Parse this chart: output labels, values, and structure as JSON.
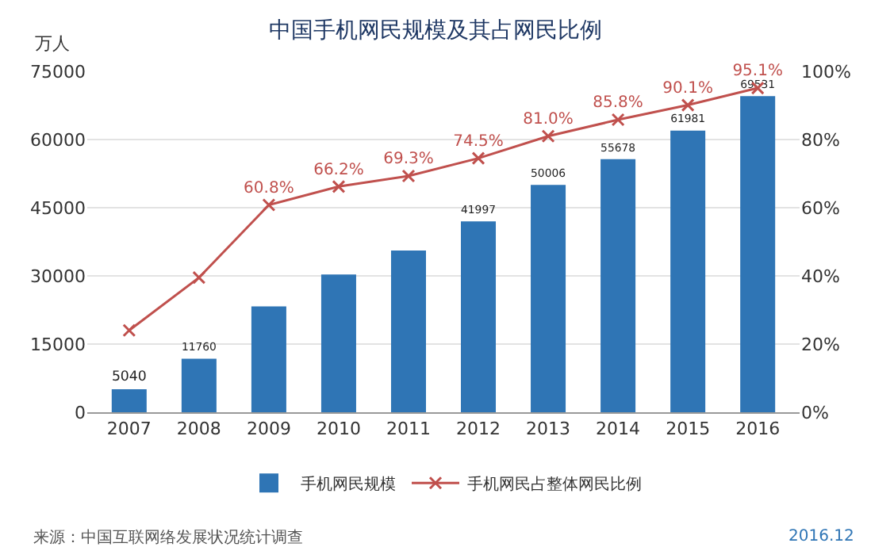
{
  "chart_data": {
    "type": "bar",
    "title": "中国手机网民规模及其占网民比例",
    "ylabel": "万人",
    "categories": [
      "2007",
      "2008",
      "2009",
      "2010",
      "2011",
      "2012",
      "2013",
      "2014",
      "2015",
      "2016"
    ],
    "series": [
      {
        "name": "手机网民规模",
        "color": "#2f75b5",
        "values": [
          5040,
          11760,
          23300,
          30300,
          35600,
          41997,
          50006,
          55678,
          61981,
          69531
        ],
        "value_labels": [
          "5040",
          "11760",
          null,
          null,
          null,
          "41997",
          "50006",
          "55678",
          "61981",
          "69531"
        ]
      },
      {
        "name": "手机网民占整体网民比例",
        "type": "line",
        "axis": "y2",
        "color": "#c0504d",
        "marker": "cross",
        "values": [
          24,
          39.5,
          60.8,
          66.2,
          69.3,
          74.5,
          81,
          85.8,
          90.1,
          95.1
        ],
        "value_labels": [
          null,
          null,
          "60.8%",
          "66.2%",
          "69.3%",
          "74.5%",
          "81.0%",
          "85.8%",
          "90.1%",
          "95.1%"
        ]
      }
    ],
    "ylim": [
      0,
      75000
    ],
    "yticks": [
      0,
      15000,
      30000,
      45000,
      60000,
      75000
    ],
    "y2lim": [
      0,
      100
    ],
    "y2ticks": [
      {
        "value": 0,
        "label": "0%"
      },
      {
        "value": 20,
        "label": "20%"
      },
      {
        "value": 40,
        "label": "40%"
      },
      {
        "value": 60,
        "label": "60%"
      },
      {
        "value": 80,
        "label": "80%"
      },
      {
        "value": 100,
        "label": "100%"
      }
    ],
    "grid": "y",
    "legend": "bottom",
    "annotations": [
      "来源：中国互联网络发展状况统计调查",
      "2016.12"
    ]
  }
}
